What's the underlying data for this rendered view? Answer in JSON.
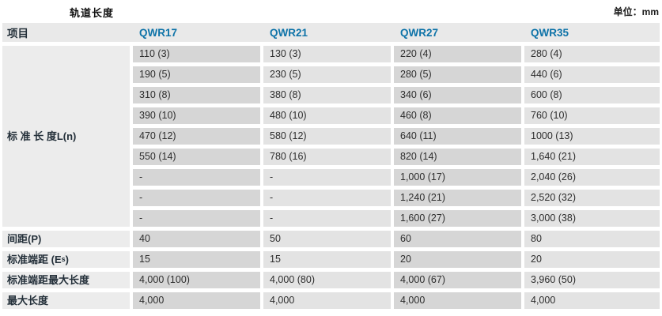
{
  "page": {
    "title": "轨道长度",
    "unit_note": "单位：mm"
  },
  "colors": {
    "accent_blue": "#0e73a8",
    "header_bg": "#e9e9e9",
    "label_col_bg": "#ececec",
    "cell_dark_bg": "#d6d6d6",
    "cell_light_bg": "#e3e3e3",
    "label_text": "#24303a",
    "value_text": "#2d2d2d"
  },
  "table": {
    "item_header": "项目",
    "columns": [
      "QWR17",
      "QWR21",
      "QWR27",
      "QWR35"
    ],
    "standard_length": {
      "label": "标 准 长 度L(n)",
      "rows": [
        [
          "110 (3)",
          "130 (3)",
          "220 (4)",
          "280 (4)"
        ],
        [
          "190 (5)",
          "230 (5)",
          "280 (5)",
          "440 (6)"
        ],
        [
          "310 (8)",
          "380 (8)",
          "340 (6)",
          "600 (8)"
        ],
        [
          "390 (10)",
          "480 (10)",
          "460 (8)",
          "760 (10)"
        ],
        [
          "470 (12)",
          "580 (12)",
          "640 (11)",
          "1000 (13)"
        ],
        [
          "550 (14)",
          "780 (16)",
          "820 (14)",
          "1,640 (21)"
        ],
        [
          "-",
          "-",
          "1,000 (17)",
          "2,040 (26)"
        ],
        [
          "-",
          "-",
          "1,240 (21)",
          "2,520 (32)"
        ],
        [
          "-",
          "-",
          "1,600 (27)",
          "3,000 (38)"
        ]
      ]
    },
    "spec_rows": [
      {
        "label": "间距(P)",
        "values": [
          "40",
          "50",
          "60",
          "80"
        ]
      },
      {
        "label_pre": "标准端距 (E",
        "label_sub": "s",
        "label_post": ")",
        "values": [
          "15",
          "15",
          "20",
          "20"
        ]
      },
      {
        "label": "标准端距最大长度",
        "values": [
          "4,000 (100)",
          "4,000 (80)",
          "4,000 (67)",
          "3,960 (50)"
        ]
      },
      {
        "label": "最大长度",
        "values": [
          "4,000",
          "4,000",
          "4,000",
          "4,000"
        ]
      }
    ]
  }
}
